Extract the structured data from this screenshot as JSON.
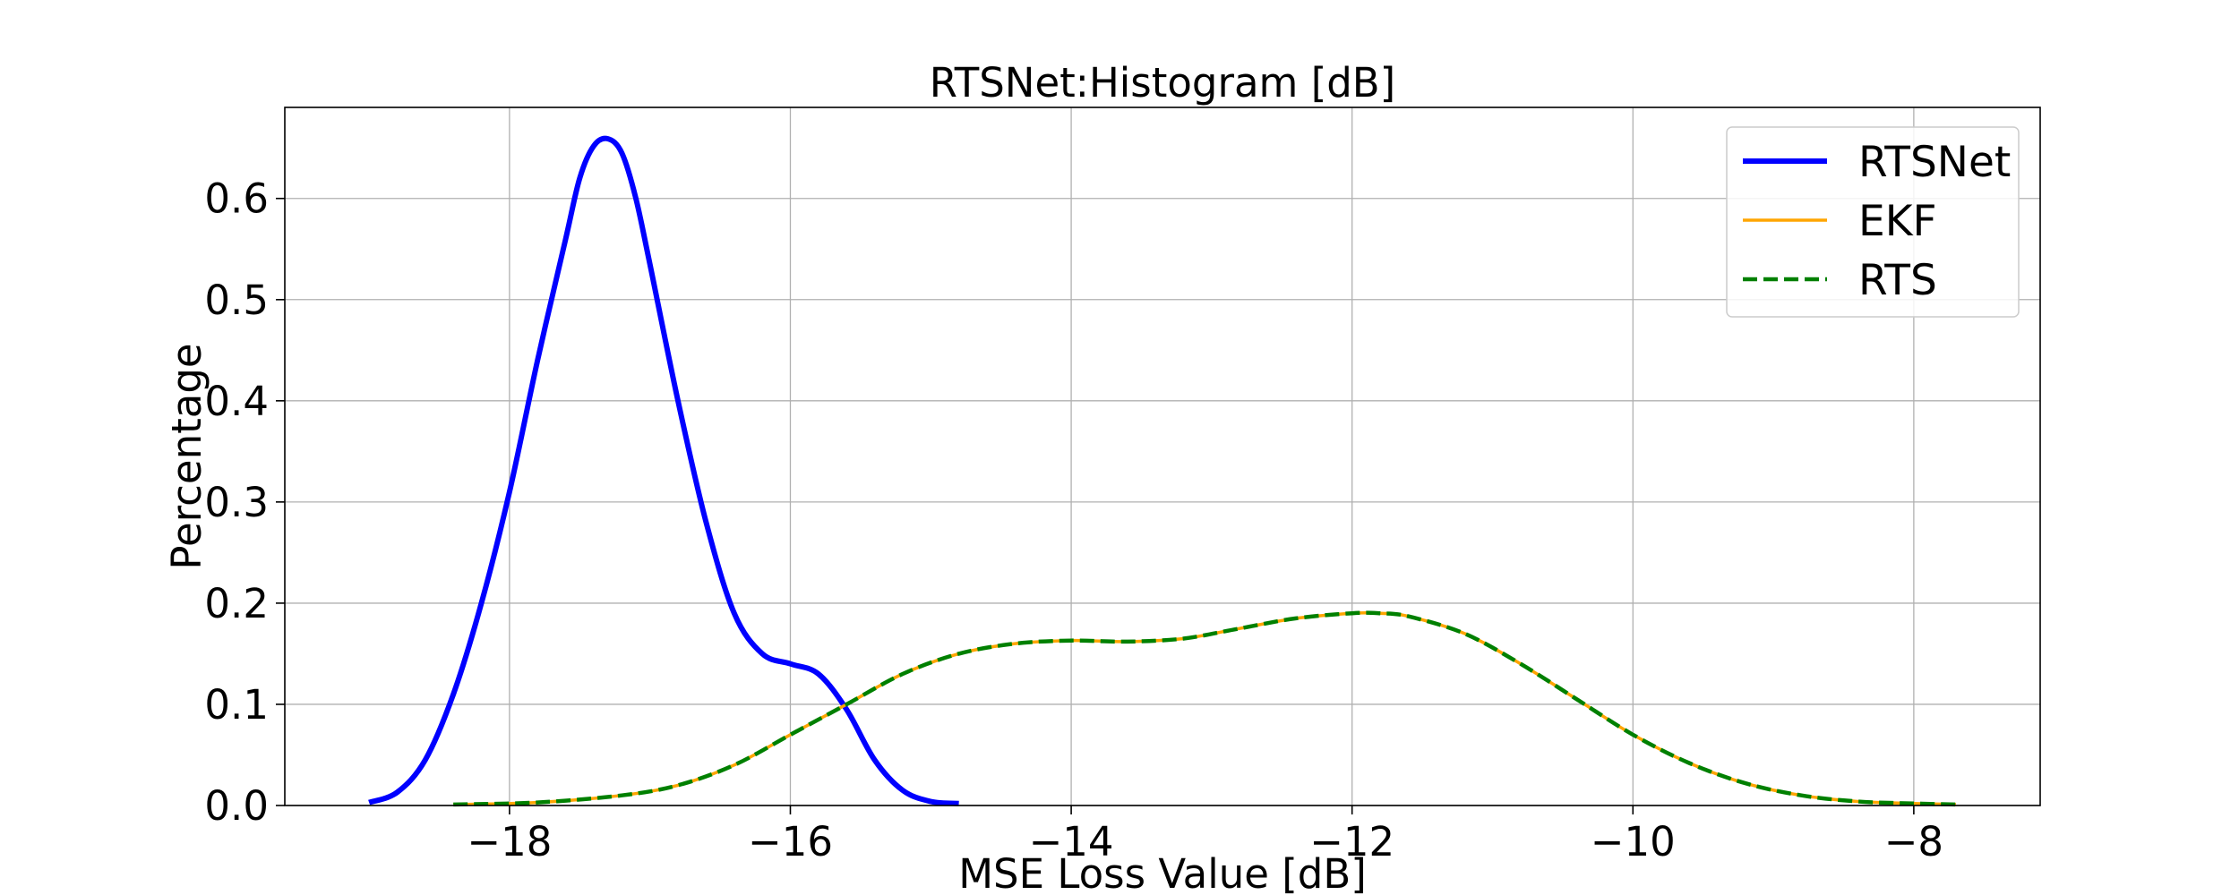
{
  "chart_data": {
    "type": "line",
    "title": "RTSNet:Histogram [dB]",
    "xlabel": "MSE Loss Value [dB]",
    "ylabel": "Percentage",
    "xlim": [
      -19.6,
      -7.1
    ],
    "ylim": [
      0.0,
      0.69
    ],
    "xticks": [
      -18,
      -16,
      -14,
      -12,
      -10,
      -8
    ],
    "xtick_labels": [
      "−18",
      "−16",
      "−14",
      "−12",
      "−10",
      "−8"
    ],
    "yticks": [
      0.0,
      0.1,
      0.2,
      0.3,
      0.4,
      0.5,
      0.6
    ],
    "ytick_labels": [
      "0.0",
      "0.1",
      "0.2",
      "0.3",
      "0.4",
      "0.5",
      "0.6"
    ],
    "grid": true,
    "legend_position": "top-right",
    "series": [
      {
        "name": "RTSNet",
        "color": "#0000ff",
        "style": "solid",
        "x": [
          -19.0,
          -18.8,
          -18.6,
          -18.4,
          -18.2,
          -18.0,
          -17.8,
          -17.6,
          -17.5,
          -17.4,
          -17.3,
          -17.2,
          -17.1,
          -17.0,
          -16.8,
          -16.6,
          -16.4,
          -16.2,
          -16.0,
          -15.8,
          -15.6,
          -15.4,
          -15.2,
          -15.0,
          -14.8
        ],
        "y": [
          0.003,
          0.013,
          0.045,
          0.11,
          0.2,
          0.31,
          0.44,
          0.56,
          0.62,
          0.652,
          0.659,
          0.645,
          0.6,
          0.535,
          0.4,
          0.28,
          0.19,
          0.15,
          0.14,
          0.13,
          0.095,
          0.045,
          0.015,
          0.004,
          0.002
        ]
      },
      {
        "name": "EKF",
        "color": "#ffa500",
        "style": "solid",
        "x": [
          -18.4,
          -17.8,
          -17.2,
          -16.8,
          -16.4,
          -16.0,
          -15.6,
          -15.2,
          -14.8,
          -14.4,
          -14.0,
          -13.6,
          -13.2,
          -12.8,
          -12.4,
          -12.0,
          -11.8,
          -11.6,
          -11.2,
          -10.8,
          -10.4,
          -10.0,
          -9.6,
          -9.2,
          -8.8,
          -8.4,
          -8.0,
          -7.7
        ],
        "y": [
          0.001,
          0.003,
          0.01,
          0.02,
          0.04,
          0.07,
          0.1,
          0.13,
          0.15,
          0.16,
          0.163,
          0.162,
          0.165,
          0.175,
          0.185,
          0.19,
          0.19,
          0.187,
          0.17,
          0.14,
          0.105,
          0.07,
          0.042,
          0.022,
          0.01,
          0.004,
          0.002,
          0.001
        ]
      },
      {
        "name": "RTS",
        "color": "#008000",
        "style": "dashed",
        "x": [
          -18.4,
          -17.8,
          -17.2,
          -16.8,
          -16.4,
          -16.0,
          -15.6,
          -15.2,
          -14.8,
          -14.4,
          -14.0,
          -13.6,
          -13.2,
          -12.8,
          -12.4,
          -12.0,
          -11.8,
          -11.6,
          -11.2,
          -10.8,
          -10.4,
          -10.0,
          -9.6,
          -9.2,
          -8.8,
          -8.4,
          -8.0,
          -7.7
        ],
        "y": [
          0.001,
          0.003,
          0.01,
          0.02,
          0.04,
          0.07,
          0.1,
          0.13,
          0.15,
          0.16,
          0.163,
          0.162,
          0.165,
          0.175,
          0.185,
          0.19,
          0.19,
          0.187,
          0.17,
          0.14,
          0.105,
          0.07,
          0.042,
          0.022,
          0.01,
          0.004,
          0.002,
          0.001
        ]
      }
    ]
  }
}
